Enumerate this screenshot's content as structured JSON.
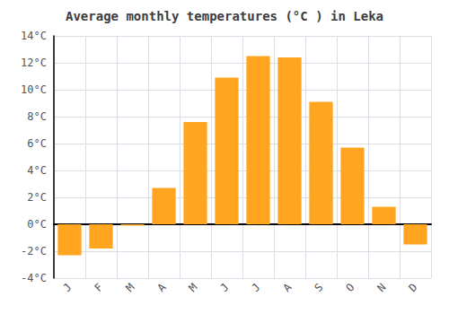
{
  "chart_data": {
    "type": "bar",
    "title": "Average monthly temperatures (°C ) in Leka",
    "categories": [
      "J",
      "F",
      "M",
      "A",
      "M",
      "J",
      "J",
      "A",
      "S",
      "O",
      "N",
      "D"
    ],
    "values": [
      -2.3,
      -1.8,
      -0.1,
      2.7,
      7.6,
      10.9,
      12.5,
      12.4,
      9.1,
      5.7,
      1.3,
      -1.5
    ],
    "color": "#FFA520",
    "ylim": [
      -4,
      14
    ],
    "yticks": [
      {
        "value": -4,
        "label": "-4°C"
      },
      {
        "value": -2,
        "label": "-2°C"
      },
      {
        "value": 0,
        "label": "0°C"
      },
      {
        "value": 2,
        "label": "2°C"
      },
      {
        "value": 4,
        "label": "4°C"
      },
      {
        "value": 6,
        "label": "6°C"
      },
      {
        "value": 8,
        "label": "8°C"
      },
      {
        "value": 10,
        "label": "10°C"
      },
      {
        "value": 12,
        "label": "12°C"
      },
      {
        "value": 14,
        "label": "14°C"
      }
    ],
    "grid": true
  }
}
